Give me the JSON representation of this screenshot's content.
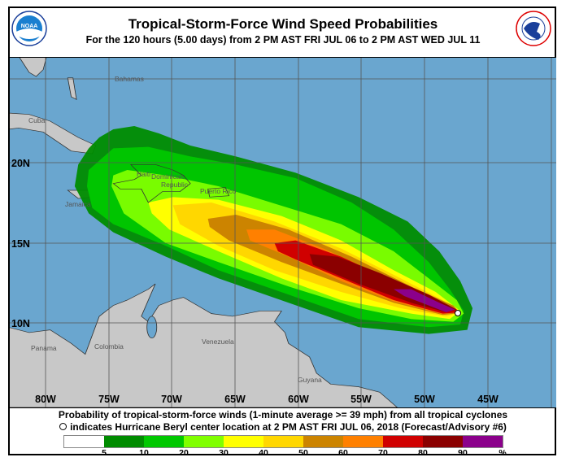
{
  "header": {
    "title": "Tropical-Storm-Force Wind Speed Probabilities",
    "subtitle": "For the 120 hours (5.00 days) from 2 PM AST FRI JUL 06 to 2 PM AST WED JUL 11",
    "left_logo": "NOAA",
    "right_logo": "NATIONAL WEATHER SERVICE"
  },
  "map": {
    "longitude_labels": [
      "80W",
      "75W",
      "70W",
      "65W",
      "60W",
      "55W",
      "50W",
      "45W"
    ],
    "latitude_labels": [
      "20N",
      "15N",
      "10N"
    ],
    "place_labels": {
      "bahamas": "Bahamas",
      "cuba": "Cuba",
      "haiti": "Haiti",
      "dominican1": "Dominican",
      "dominican2": "Republic",
      "puerto_rico": "Puerto Rico",
      "jamaica": "Jamaica",
      "panama": "Panama",
      "colombia": "Colombia",
      "venezuela": "Venezuela",
      "guyana": "Guyana"
    },
    "colors": {
      "ocean": "#6aa6cf",
      "land": "#c8c8c8"
    }
  },
  "caption": {
    "line1": "Probability of tropical-storm-force winds (1-minute average >= 39 mph) from all tropical cyclones",
    "line2": "indicates Hurricane Beryl center location at 2 PM AST FRI JUL 06, 2018 (Forecast/Advisory #6)"
  },
  "legend": {
    "colors": [
      "#ffffff",
      "#008c00",
      "#00c800",
      "#80ff00",
      "#ffff00",
      "#ffd700",
      "#cc8400",
      "#ff8000",
      "#d00000",
      "#8b0000",
      "#8b008b"
    ],
    "labels": [
      "5",
      "10",
      "20",
      "30",
      "40",
      "50",
      "60",
      "70",
      "80",
      "90",
      "%"
    ]
  }
}
